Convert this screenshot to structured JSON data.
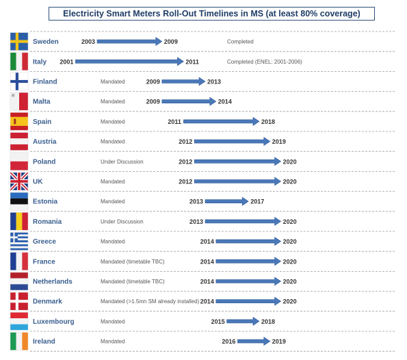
{
  "title": "Electricity Smart Meters Roll-Out Timelines in MS (at least 80% coverage)",
  "colors": {
    "arrow": "#4a78b8",
    "arrow_stroke": "#2f5a96",
    "country": "#3b5f8f"
  },
  "chart_data": {
    "type": "timeline",
    "title": "Electricity Smart Meters Roll-Out Timelines in MS (at least 80% coverage)",
    "rows": [
      {
        "country": "Sweden",
        "status": "Completed",
        "start": 2003,
        "end": 2009
      },
      {
        "country": "Italy",
        "status": "Completed (ENEL: 2001-2006)",
        "start": 2001,
        "end": 2011
      },
      {
        "country": "Finland",
        "status": "Mandated",
        "start": 2009,
        "end": 2013
      },
      {
        "country": "Malta",
        "status": "Mandated",
        "start": 2009,
        "end": 2014
      },
      {
        "country": "Spain",
        "status": "Mandated",
        "start": 2011,
        "end": 2018
      },
      {
        "country": "Austria",
        "status": "Mandated",
        "start": 2012,
        "end": 2019
      },
      {
        "country": "Poland",
        "status": "Under Discussion",
        "start": 2012,
        "end": 2020
      },
      {
        "country": "UK",
        "status": "Mandated",
        "start": 2012,
        "end": 2020
      },
      {
        "country": "Estonia",
        "status": "Mandated",
        "start": 2013,
        "end": 2017
      },
      {
        "country": "Romania",
        "status": "Under Discussion",
        "start": 2013,
        "end": 2020
      },
      {
        "country": "Greece",
        "status": "Mandated",
        "start": 2014,
        "end": 2020
      },
      {
        "country": "France",
        "status": "Mandated (timetable TBC)",
        "start": 2014,
        "end": 2020
      },
      {
        "country": "Netherlands",
        "status": "Mandated (timetable TBC)",
        "start": 2014,
        "end": 2020
      },
      {
        "country": "Denmark",
        "status": "Mandated (>1.5mn SM already installed)",
        "start": 2014,
        "end": 2020
      },
      {
        "country": "Luxembourg",
        "status": "Mandated",
        "start": 2015,
        "end": 2018
      },
      {
        "country": "Ireland",
        "status": "Mandated",
        "start": 2016,
        "end": 2019
      }
    ]
  }
}
